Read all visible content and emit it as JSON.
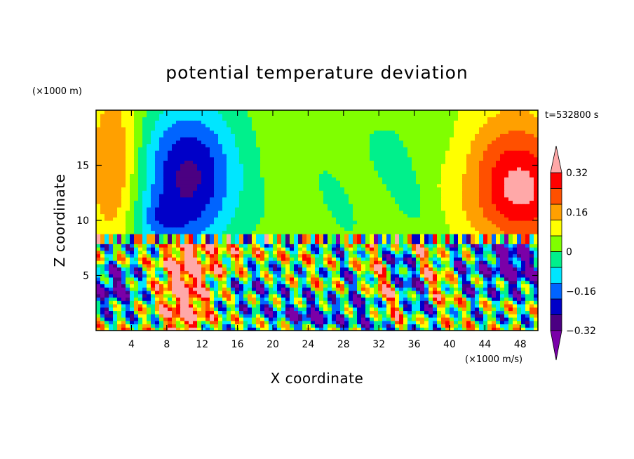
{
  "chart_data": {
    "type": "heatmap",
    "title": "potential temperature deviation",
    "xlabel": "X coordinate",
    "ylabel": "Z coordinate",
    "x_unit": "(×1000 m/s)",
    "y_unit": "(×1000 m)",
    "time_label": "t=532800 s",
    "xlim": [
      0,
      50
    ],
    "ylim": [
      0,
      20
    ],
    "x_ticks": [
      4,
      8,
      12,
      16,
      20,
      24,
      28,
      32,
      36,
      40,
      44,
      48
    ],
    "y_ticks": [
      5,
      10,
      15
    ],
    "colorbar": {
      "levels": [
        -0.4,
        -0.32,
        -0.24,
        -0.16,
        -0.08,
        0,
        0.08,
        0.16,
        0.24,
        0.32,
        0.4
      ],
      "labels": [
        "0.32",
        "0.16",
        "0",
        "−0.16",
        "−0.32"
      ],
      "label_values": [
        0.32,
        0.16,
        0,
        -0.16,
        -0.32
      ],
      "colors": [
        "#7a00a8",
        "#4b0082",
        "#0000c8",
        "#0064ff",
        "#00e6ff",
        "#00f08c",
        "#80ff00",
        "#ffff00",
        "#ffa000",
        "#ff5000",
        "#ff0000",
        "#ffa8a8"
      ],
      "extend": "both"
    },
    "regions_description": "upper layer smooth bands; jet near z≈8.3; turbulent lower layer"
  }
}
